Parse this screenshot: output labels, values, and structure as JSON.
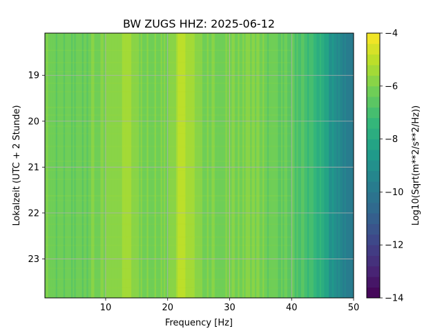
{
  "chart_data": {
    "type": "heatmap",
    "title": "BW ZUGS  HHZ: 2025-06-12",
    "xlabel": "Frequency [Hz]",
    "ylabel": "Lokalzeit (UTC + 2 Stunde)",
    "xlim": [
      0.2,
      50
    ],
    "ylim": [
      23.85,
      18.08
    ],
    "x_ticks": [
      10,
      20,
      30,
      40,
      50
    ],
    "x_tick_labels": [
      "10",
      "20",
      "30",
      "40",
      "50"
    ],
    "y_ticks": [
      19,
      20,
      21,
      22,
      23
    ],
    "y_tick_labels": [
      "19",
      "20",
      "21",
      "22",
      "23"
    ],
    "grid": true,
    "colormap": "viridis",
    "colorbar": {
      "label": "Log10(Sqrt(m**2/s**2/Hz))",
      "range": [
        -14,
        -4
      ],
      "ticks": [
        -14,
        -12,
        -10,
        -8,
        -6,
        -4
      ],
      "tick_labels": [
        "−14",
        "−12",
        "−10",
        "−8",
        "−6",
        "−4"
      ],
      "levels": 25
    },
    "z_profile_by_frequency": {
      "frequency_hz": [
        0.2,
        2,
        5,
        8,
        10,
        12,
        13,
        14,
        16,
        18,
        20,
        21,
        22,
        23,
        24,
        26,
        28,
        30,
        32,
        34,
        36,
        38,
        39,
        40,
        42,
        44,
        45,
        46,
        47,
        48,
        49,
        50
      ],
      "log10_psd": [
        -5.8,
        -6.3,
        -6.4,
        -6.1,
        -6.0,
        -5.7,
        -5.3,
        -5.6,
        -5.9,
        -6.0,
        -5.9,
        -5.6,
        -4.9,
        -5.4,
        -5.5,
        -6.0,
        -6.1,
        -6.1,
        -6.0,
        -5.9,
        -6.2,
        -6.4,
        -6.6,
        -6.5,
        -6.9,
        -7.4,
        -7.9,
        -8.5,
        -9.0,
        -9.4,
        -9.8,
        -9.8
      ]
    }
  }
}
